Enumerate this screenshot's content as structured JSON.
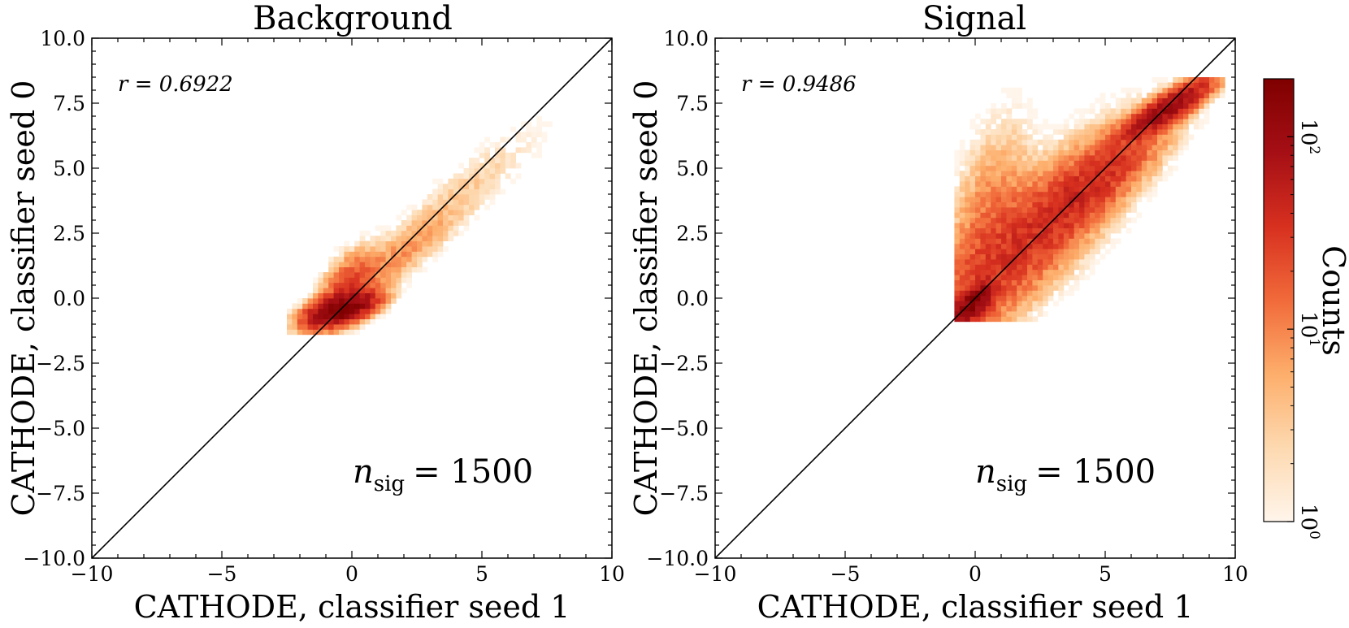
{
  "figure": {
    "colorbar": {
      "label": "Counts",
      "scale": "log",
      "range": [
        1,
        200
      ],
      "colormap": [
        "#fff5eb",
        "#fdd9b0",
        "#fdae6b",
        "#f16a3a",
        "#d7301f",
        "#a50f15",
        "#7f0000"
      ],
      "ticks": [
        {
          "base": "10",
          "exp": "0",
          "value": 1
        },
        {
          "base": "10",
          "exp": "1",
          "value": 10
        },
        {
          "base": "10",
          "exp": "2",
          "value": 100
        }
      ]
    }
  },
  "chart_data": [
    {
      "type": "heatmap",
      "title": "Background",
      "xlabel": "CATHODE, classifier seed 1",
      "ylabel": "CATHODE, classifier seed 0",
      "xlim": [
        -10,
        10
      ],
      "ylim": [
        -10,
        10
      ],
      "xticks": [
        "−10",
        "−5",
        "0",
        "5",
        "10"
      ],
      "yticks": [
        "−10.0",
        "−7.5",
        "−5.0",
        "−2.5",
        "0.0",
        "2.5",
        "5.0",
        "7.5",
        "10.0"
      ],
      "annotations": {
        "correlation": "r = 0.6922",
        "nsig_symbol": "n",
        "nsig_subscript": "sig",
        "nsig_value": "= 1500"
      },
      "diagonal_line": {
        "from": [
          -10,
          -10
        ],
        "to": [
          10,
          10
        ]
      },
      "grid": false,
      "density_blobs": [
        {
          "cx": -0.4,
          "cy": -0.4,
          "sx": 0.7,
          "sy": 0.35,
          "rho": 0.55,
          "peak": 200
        },
        {
          "cx": 1.5,
          "cy": 1.4,
          "sx": 1.6,
          "sy": 1.3,
          "rho": 0.9,
          "peak": 8
        },
        {
          "cx": 4.5,
          "cy": 4.3,
          "sx": 1.8,
          "sy": 1.5,
          "rho": 0.88,
          "peak": 2.5
        },
        {
          "cx": -0.2,
          "cy": 0.3,
          "sx": 0.6,
          "sy": 0.8,
          "rho": 0.5,
          "peak": 25
        }
      ],
      "support": {
        "xmin": -2.5,
        "xmax": 8.5,
        "ymin": -1.4,
        "ymax": 8.0
      }
    },
    {
      "type": "heatmap",
      "title": "Signal",
      "xlabel": "CATHODE, classifier seed 1",
      "ylabel": "CATHODE, classifier seed 0",
      "xlim": [
        -10,
        10
      ],
      "ylim": [
        -10,
        10
      ],
      "xticks": [
        "−10",
        "−5",
        "0",
        "5",
        "10"
      ],
      "yticks": [
        "−10.0",
        "−7.5",
        "−5.0",
        "−2.5",
        "0.0",
        "2.5",
        "5.0",
        "7.5",
        "10.0"
      ],
      "annotations": {
        "correlation": "r = 0.9486",
        "nsig_symbol": "n",
        "nsig_subscript": "sig",
        "nsig_value": "= 1500"
      },
      "diagonal_line": {
        "from": [
          -10,
          -10
        ],
        "to": [
          10,
          10
        ]
      },
      "grid": false,
      "density_blobs": [
        {
          "cx": -0.1,
          "cy": -0.2,
          "sx": 0.45,
          "sy": 0.45,
          "rho": 0.6,
          "peak": 150
        },
        {
          "cx": 2.0,
          "cy": 2.2,
          "sx": 2.2,
          "sy": 2.2,
          "rho": 0.82,
          "peak": 28
        },
        {
          "cx": 4.5,
          "cy": 4.4,
          "sx": 1.6,
          "sy": 1.4,
          "rho": 0.85,
          "peak": 30
        },
        {
          "cx": 7.4,
          "cy": 7.3,
          "sx": 0.9,
          "sy": 0.6,
          "rho": 0.85,
          "peak": 110
        },
        {
          "cx": 0.5,
          "cy": 2.5,
          "sx": 0.9,
          "sy": 2.2,
          "rho": 0.4,
          "peak": 12
        }
      ],
      "support": {
        "xmin": -0.8,
        "xmax": 9.5,
        "ymin": -0.9,
        "ymax": 8.4
      }
    }
  ]
}
